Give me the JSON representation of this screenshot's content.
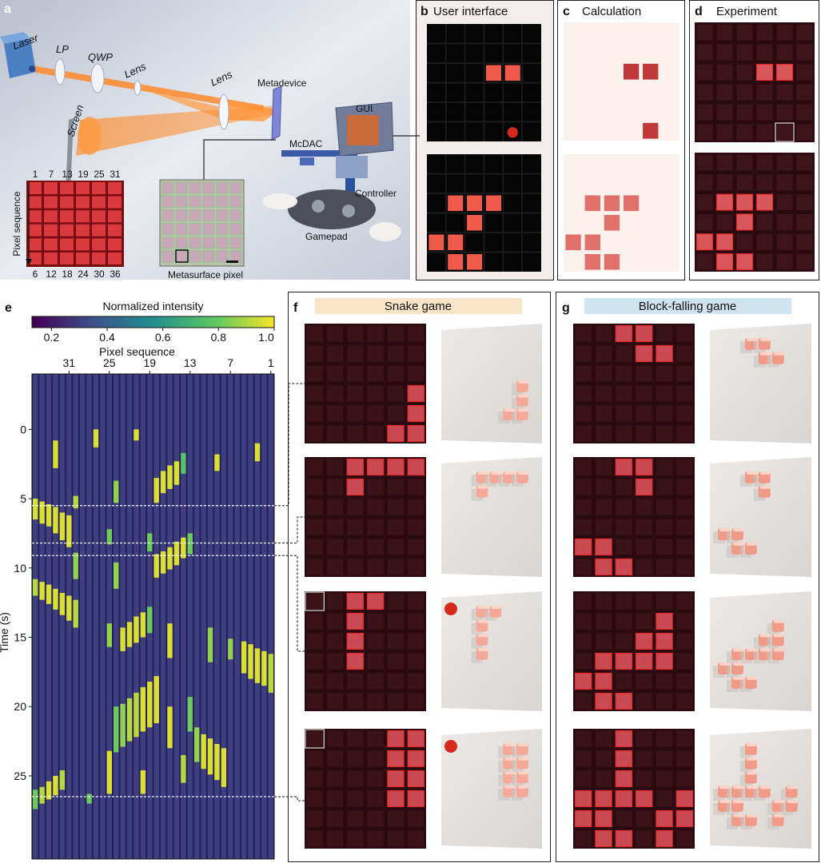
{
  "panel_a": {
    "label": "a",
    "laser": "Laser",
    "lp": "LP",
    "qwp": "QWP",
    "lens_1": "Lens",
    "lens_2": "Lens",
    "metadevice": "Metadevice",
    "screen": "Screen",
    "gui": "GUI",
    "mcdac": "McDAC",
    "controller": "Controller",
    "gamepad": "Gamepad",
    "pixel_sequence": "Pixel sequence",
    "top_numbers": [
      1,
      7,
      13,
      19,
      25,
      31
    ],
    "bottom_numbers": [
      6,
      12,
      18,
      24,
      30,
      36
    ],
    "metasurface_pixel": "Metasurface pixel"
  },
  "panel_b": {
    "label": "b",
    "title": "User interface"
  },
  "panel_c": {
    "label": "c",
    "title": "Calculation"
  },
  "panel_d": {
    "label": "d",
    "title": "Experiment"
  },
  "panel_e": {
    "label": "e"
  },
  "chart_data": {
    "type": "heatmap",
    "colorbar_title": "Normalized intensity",
    "colormap": "viridis",
    "clim": [
      0.13,
      1.0
    ],
    "colorbar_ticks": [
      0.2,
      0.4,
      0.6,
      0.8,
      {
        "value": 1,
        "label": "1.0"
      }
    ],
    "x_label": "Pixel sequence",
    "xlim": [
      36.5,
      0.5
    ],
    "xticks": [
      31,
      25,
      19,
      13,
      7,
      1
    ],
    "y_label": "Time (s)",
    "ylim": [
      -4,
      31
    ],
    "yticks": [
      0,
      5,
      10,
      15,
      20,
      25
    ],
    "base_intensity": 0.3,
    "marked_times": [
      5.5,
      8.2,
      9.1,
      26.5
    ],
    "segments": [
      [
        3,
        1,
        2.3,
        0.95
      ],
      [
        27,
        0,
        1.3,
        0.95
      ],
      [
        21,
        0,
        0.8,
        0.95
      ],
      [
        33,
        0.8,
        2.8,
        0.95
      ],
      [
        9,
        1.8,
        3,
        0.95
      ],
      [
        18,
        3.5,
        5.3,
        0.95
      ],
      [
        17,
        3,
        4.6,
        0.95
      ],
      [
        16,
        2.6,
        4.3,
        0.95
      ],
      [
        15,
        2.3,
        4,
        0.95
      ],
      [
        14,
        1.7,
        3.2,
        0.75
      ],
      [
        36,
        5,
        6.5,
        0.95
      ],
      [
        35,
        5.2,
        6.8,
        0.95
      ],
      [
        34,
        5.4,
        7,
        0.95
      ],
      [
        33,
        5.6,
        7.5,
        0.95
      ],
      [
        32,
        6,
        8,
        0.95
      ],
      [
        31,
        6.2,
        8.5,
        0.95
      ],
      [
        30,
        4.8,
        5.7,
        0.9
      ],
      [
        24,
        3.7,
        5.3,
        0.85
      ],
      [
        25,
        7.2,
        8.3,
        0.8
      ],
      [
        19,
        7.5,
        8.8,
        0.8
      ],
      [
        18,
        9,
        10.7,
        0.95
      ],
      [
        17,
        8.8,
        10.4,
        0.95
      ],
      [
        16,
        8.5,
        10.1,
        0.95
      ],
      [
        15,
        8.1,
        9.8,
        0.95
      ],
      [
        14,
        7.8,
        9.3,
        0.95
      ],
      [
        13,
        7.5,
        9,
        0.8
      ],
      [
        24,
        9.6,
        11.5,
        0.85
      ],
      [
        30,
        8.9,
        10.8,
        0.85
      ],
      [
        36,
        10.8,
        12,
        0.9
      ],
      [
        35,
        11,
        12.3,
        0.95
      ],
      [
        34,
        11.2,
        12.6,
        0.95
      ],
      [
        33,
        11.5,
        13,
        0.95
      ],
      [
        32,
        11.8,
        13.4,
        0.95
      ],
      [
        31,
        12,
        13.8,
        0.95
      ],
      [
        30,
        12.3,
        14.3,
        0.9
      ],
      [
        25,
        14,
        15.7,
        0.85
      ],
      [
        23,
        14.3,
        16,
        0.95
      ],
      [
        22,
        13.9,
        15.7,
        0.95
      ],
      [
        21,
        13.5,
        15.4,
        0.95
      ],
      [
        20,
        13.2,
        15,
        0.95
      ],
      [
        19,
        12.8,
        14.7,
        0.8
      ],
      [
        16,
        14,
        16.5,
        0.95
      ],
      [
        10,
        14.3,
        16.8,
        0.85
      ],
      [
        7,
        15.1,
        16.6,
        0.85
      ],
      [
        5,
        15.3,
        17.6,
        0.95
      ],
      [
        4,
        15.5,
        18,
        0.95
      ],
      [
        3,
        15.8,
        18.3,
        0.95
      ],
      [
        2,
        16,
        18.5,
        0.95
      ],
      [
        1,
        16.2,
        19,
        0.9
      ],
      [
        24,
        20,
        23.3,
        0.8
      ],
      [
        23,
        19.8,
        22.9,
        0.85
      ],
      [
        22,
        19.4,
        22.5,
        0.9
      ],
      [
        21,
        19,
        22.2,
        0.9
      ],
      [
        20,
        18.6,
        21.8,
        0.95
      ],
      [
        19,
        18.2,
        21.5,
        0.95
      ],
      [
        18,
        17.8,
        21.2,
        0.95
      ],
      [
        16,
        20,
        23,
        0.95
      ],
      [
        13,
        19.3,
        21.8,
        0.8
      ],
      [
        12,
        21.5,
        24,
        0.85
      ],
      [
        11,
        22,
        24.5,
        0.95
      ],
      [
        10,
        22.3,
        24.9,
        0.95
      ],
      [
        9,
        22.7,
        25.3,
        0.95
      ],
      [
        8,
        23,
        25.8,
        0.95
      ],
      [
        25,
        23.2,
        26.3,
        0.95
      ],
      [
        20,
        24.6,
        26.3,
        0.95
      ],
      [
        14,
        23.5,
        25.5,
        0.9
      ],
      [
        36,
        26,
        27.4,
        0.8
      ],
      [
        35,
        25.8,
        27,
        0.9
      ],
      [
        34,
        25.4,
        26.7,
        0.95
      ],
      [
        33,
        25,
        26.4,
        0.95
      ],
      [
        32,
        24.6,
        26,
        0.9
      ],
      [
        28,
        26.3,
        27,
        0.8
      ]
    ]
  },
  "panel_f": {
    "label": "f",
    "title": "Snake game"
  },
  "panel_g": {
    "label": "g",
    "title": "Block-falling game"
  }
}
